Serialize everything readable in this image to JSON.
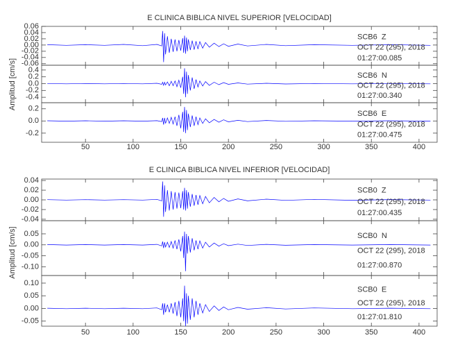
{
  "chart_data": [
    {
      "type": "line",
      "title": "E CLINICA BIBLICA NIVEL SUPERIOR [VELOCIDAD]",
      "ylabel": "Amplitud [cm/s]",
      "x": [
        10,
        30,
        50,
        70,
        90,
        110,
        125,
        130,
        131,
        132,
        133,
        134,
        136,
        138,
        140,
        142,
        144,
        146,
        148,
        150,
        152,
        153,
        154,
        155,
        156,
        157,
        158,
        160,
        162,
        164,
        166,
        168,
        170,
        173,
        176,
        180,
        185,
        190,
        195,
        200,
        210,
        220,
        240,
        260,
        290,
        330,
        370,
        412
      ],
      "xlim": [
        4,
        419
      ],
      "xticks": [
        50,
        100,
        150,
        200,
        250,
        300,
        350,
        400
      ],
      "series": [
        {
          "name": "SCB6  Z",
          "date": "OCT 22 (295), 2018",
          "time": "01:27:00.085",
          "color": "#0000ff",
          "ylim": [
            -0.065,
            0.06
          ],
          "yticks": [
            0.06,
            0.04,
            0.02,
            {
              "value": 0,
              "label": "0.00"
            },
            -0.02,
            -0.04,
            -0.06
          ],
          "values": [
            0.001,
            -0.001,
            0.001,
            -0.001,
            0.002,
            -0.002,
            0.002,
            -0.003,
            0.045,
            -0.055,
            0.038,
            -0.03,
            0.028,
            -0.025,
            0.02,
            -0.022,
            0.018,
            -0.02,
            0.016,
            -0.018,
            0.022,
            -0.025,
            0.03,
            -0.028,
            0.024,
            -0.02,
            0.018,
            -0.016,
            0.014,
            -0.015,
            0.012,
            -0.013,
            0.011,
            -0.01,
            0.008,
            -0.007,
            0.006,
            -0.005,
            0.004,
            -0.004,
            0.003,
            -0.003,
            0.002,
            -0.002,
            0.001,
            -0.001,
            0.001,
            -0.001
          ]
        },
        {
          "name": "SCB6  N",
          "date": "OCT 22 (295), 2018",
          "time": "01:27:00.340",
          "color": "#0000ff",
          "ylim": [
            -0.56,
            0.54
          ],
          "yticks": [
            0.4,
            0.2,
            {
              "value": 0,
              "label": "0.0"
            },
            -0.2,
            -0.4
          ],
          "values": [
            0.005,
            -0.005,
            0.005,
            -0.005,
            0.005,
            -0.005,
            0.01,
            -0.02,
            0.04,
            -0.05,
            0.04,
            -0.04,
            0.05,
            -0.06,
            0.07,
            -0.06,
            0.08,
            -0.09,
            0.1,
            -0.12,
            0.2,
            -0.3,
            0.45,
            -0.4,
            0.35,
            -0.3,
            0.25,
            -0.2,
            0.18,
            -0.15,
            0.12,
            -0.1,
            0.08,
            -0.07,
            0.06,
            -0.05,
            0.04,
            -0.03,
            0.03,
            -0.02,
            0.02,
            -0.015,
            0.01,
            -0.01,
            0.005,
            -0.005,
            0.005,
            -0.005
          ]
        },
        {
          "name": "SCB6  E",
          "date": "OCT 22 (295), 2018",
          "time": "01:27:00.475",
          "color": "#0000ff",
          "ylim": [
            -0.35,
            0.3
          ],
          "yticks": [
            0.2,
            {
              "value": 0,
              "label": "0.0"
            },
            -0.2
          ],
          "values": [
            0.003,
            -0.003,
            0.003,
            -0.003,
            0.003,
            -0.003,
            0.005,
            -0.01,
            0.05,
            -0.06,
            0.05,
            -0.04,
            0.05,
            -0.04,
            0.06,
            -0.05,
            0.07,
            -0.08,
            0.1,
            -0.12,
            0.15,
            -0.18,
            0.23,
            -0.2,
            0.18,
            -0.15,
            0.12,
            -0.1,
            0.09,
            -0.08,
            0.07,
            -0.06,
            0.05,
            -0.04,
            0.035,
            -0.03,
            0.025,
            -0.02,
            0.02,
            -0.015,
            0.01,
            -0.01,
            0.008,
            -0.006,
            0.004,
            -0.003,
            0.003,
            -0.003
          ]
        }
      ]
    },
    {
      "type": "line",
      "title": "E CLINICA BIBLICA NIVEL INFERIOR [VELOCIDAD]",
      "ylabel": "Amplitud [cm/s]",
      "x": [
        10,
        30,
        50,
        70,
        90,
        110,
        125,
        130,
        131,
        132,
        133,
        134,
        136,
        138,
        140,
        142,
        144,
        146,
        148,
        150,
        152,
        153,
        154,
        155,
        156,
        157,
        158,
        160,
        162,
        164,
        166,
        168,
        170,
        173,
        176,
        180,
        185,
        190,
        195,
        200,
        210,
        220,
        240,
        260,
        290,
        330,
        370,
        412
      ],
      "xlim": [
        4,
        419
      ],
      "xticks": [
        50,
        100,
        150,
        200,
        250,
        300,
        350,
        400
      ],
      "series": [
        {
          "name": "SCB0  Z",
          "date": "OCT 22 (295), 2018",
          "time": "01:27:00.435",
          "color": "#0000ff",
          "ylim": [
            -0.043,
            0.043
          ],
          "yticks": [
            0.04,
            0.02,
            {
              "value": 0,
              "label": "0.00"
            },
            -0.02,
            -0.04
          ],
          "values": [
            0.0005,
            -0.0005,
            0.0005,
            -0.0005,
            0.0005,
            -0.0005,
            0.001,
            -0.002,
            0.038,
            -0.035,
            0.03,
            -0.025,
            0.02,
            -0.022,
            0.018,
            -0.02,
            0.016,
            -0.018,
            0.015,
            -0.017,
            0.018,
            -0.02,
            0.025,
            -0.022,
            0.02,
            -0.018,
            0.016,
            -0.014,
            0.012,
            -0.012,
            0.01,
            -0.01,
            0.009,
            -0.008,
            0.007,
            -0.006,
            0.005,
            -0.004,
            0.003,
            -0.003,
            0.002,
            -0.002,
            0.0015,
            -0.001,
            0.001,
            -0.0008,
            0.0006,
            -0.0005
          ]
        },
        {
          "name": "SCB0  N",
          "date": "OCT 22 (295), 2018",
          "time": "01:27:00.870",
          "color": "#0000ff",
          "ylim": [
            -0.14,
            0.11
          ],
          "yticks": [
            0.05,
            {
              "value": 0,
              "label": "0.00"
            },
            -0.05,
            {
              "value": -0.1,
              "label": "-0.10"
            }
          ],
          "values": [
            0.001,
            -0.001,
            0.001,
            -0.001,
            0.001,
            -0.001,
            0.002,
            -0.005,
            0.015,
            -0.015,
            0.012,
            -0.01,
            0.012,
            -0.012,
            0.015,
            -0.015,
            0.02,
            -0.02,
            0.025,
            -0.03,
            0.04,
            -0.06,
            0.06,
            -0.12,
            0.05,
            -0.04,
            0.04,
            -0.035,
            0.03,
            -0.025,
            0.02,
            -0.02,
            0.018,
            -0.015,
            0.012,
            -0.01,
            0.008,
            -0.006,
            0.005,
            -0.004,
            0.003,
            -0.003,
            0.002,
            -0.002,
            0.001,
            -0.001,
            0.001,
            -0.001
          ]
        },
        {
          "name": "SCB0  E",
          "date": "OCT 22 (295), 2018",
          "time": "01:27:01.810",
          "color": "#0000ff",
          "ylim": [
            -0.07,
            0.13
          ],
          "yticks": [
            {
              "value": 0.1,
              "label": "0.10"
            },
            0.05,
            {
              "value": 0,
              "label": "0.00"
            },
            -0.05
          ],
          "values": [
            0.001,
            -0.001,
            0.001,
            -0.001,
            0.001,
            -0.001,
            0.002,
            -0.005,
            0.02,
            -0.025,
            0.02,
            -0.015,
            0.015,
            -0.015,
            0.02,
            -0.02,
            0.025,
            -0.03,
            0.03,
            -0.035,
            0.04,
            -0.05,
            0.09,
            -0.07,
            0.06,
            -0.06,
            0.05,
            -0.045,
            0.04,
            -0.035,
            0.03,
            -0.025,
            0.02,
            -0.018,
            0.015,
            -0.012,
            0.01,
            -0.008,
            0.006,
            -0.005,
            0.004,
            -0.003,
            0.003,
            -0.002,
            0.002,
            -0.001,
            0.001,
            -0.001
          ]
        }
      ]
    }
  ]
}
